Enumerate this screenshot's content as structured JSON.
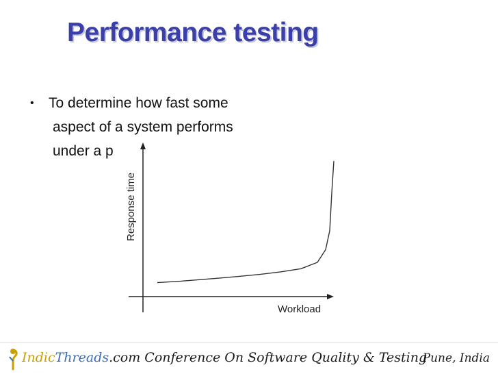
{
  "slide": {
    "title": "Performance testing",
    "bullets": [
      "To determine how fast some",
      "aspect of a system performs",
      "under a p"
    ],
    "bullet_symbol": "•"
  },
  "chart_data": {
    "type": "line",
    "title": "",
    "xlabel": "Workload",
    "ylabel": "Response time",
    "x": [
      0,
      10,
      20,
      30,
      40,
      50,
      60,
      70,
      78,
      82,
      84,
      85,
      86
    ],
    "series": [
      {
        "values": [
          1.6,
          2.0,
          2.5,
          3.0,
          3.6,
          4.2,
          5.0,
          6.0,
          8.0,
          12.0,
          18.0,
          30.0,
          40.0
        ]
      }
    ],
    "xlim": [
      0,
      100
    ],
    "ylim": [
      0,
      45
    ],
    "grid": false,
    "line_color": "#333333"
  },
  "footer": {
    "brand_indic": "Indic",
    "brand_threads": "Threads",
    "brand_rest": ".com Conference On Software Quality & Testing",
    "location": "Pune, India",
    "brand_indic_color": "#c9a000",
    "brand_threads_color": "#3b6fb6"
  }
}
